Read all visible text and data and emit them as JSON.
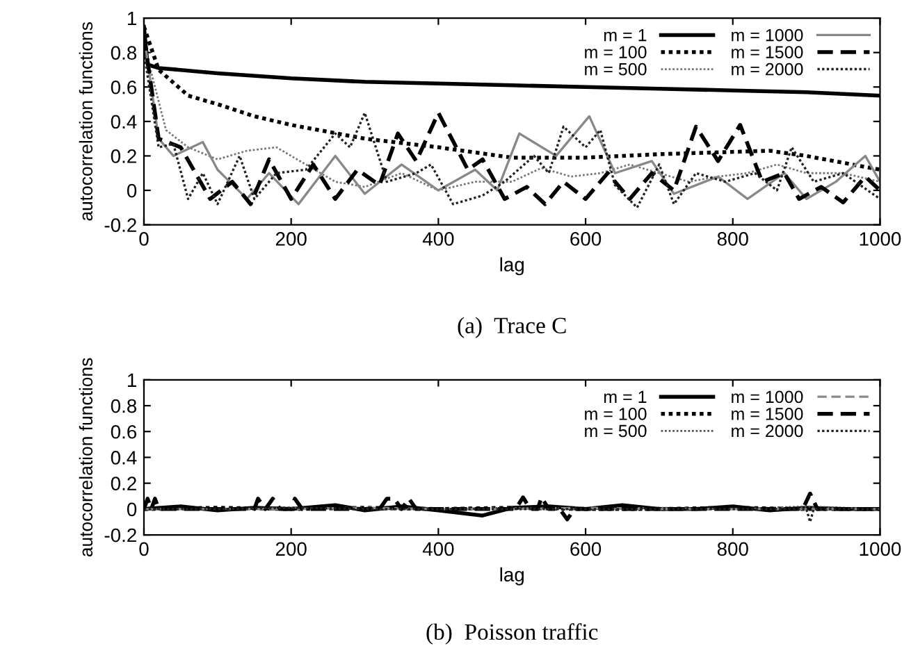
{
  "chart_data": [
    {
      "type": "line",
      "title": "(a)  Trace C",
      "xlabel": "lag",
      "ylabel": "autocorrelation functions",
      "xlim": [
        0,
        1000
      ],
      "ylim": [
        -0.2,
        1
      ],
      "xticks": [
        0,
        200,
        400,
        600,
        800,
        1000
      ],
      "yticks": [
        -0.2,
        0,
        0.2,
        0.4,
        0.6,
        0.8,
        1
      ],
      "grid": false,
      "legend": "top right",
      "series": [
        {
          "name": "m = 1",
          "color": "#000000",
          "line_style": "solid",
          "x": [
            0,
            5,
            20,
            100,
            200,
            300,
            400,
            500,
            600,
            700,
            800,
            900,
            1000
          ],
          "values": [
            0.95,
            0.73,
            0.71,
            0.68,
            0.65,
            0.63,
            0.62,
            0.61,
            0.6,
            0.59,
            0.58,
            0.57,
            0.55
          ]
        },
        {
          "name": "m = 100",
          "color": "#000000",
          "line_style": "dotted",
          "x": [
            0,
            20,
            60,
            100,
            150,
            200,
            300,
            400,
            500,
            600,
            700,
            850,
            900,
            1000
          ],
          "values": [
            0.95,
            0.7,
            0.55,
            0.5,
            0.43,
            0.38,
            0.3,
            0.25,
            0.19,
            0.19,
            0.21,
            0.23,
            0.2,
            0.12
          ]
        },
        {
          "name": "m = 500",
          "color": "#777777",
          "line_style": "dotted",
          "x": [
            0,
            30,
            60,
            100,
            140,
            180,
            220,
            260,
            300,
            350,
            400,
            450,
            500,
            540,
            580,
            620,
            660,
            700,
            740,
            780,
            820,
            860,
            900,
            950,
            1000
          ],
          "values": [
            0.85,
            0.35,
            0.25,
            0.18,
            0.23,
            0.25,
            0.15,
            0.05,
            0.02,
            0.1,
            0.0,
            0.05,
            0.05,
            0.13,
            0.08,
            0.1,
            0.15,
            0.1,
            0.05,
            0.08,
            0.1,
            0.15,
            0.1,
            0.1,
            0.05
          ]
        },
        {
          "name": "m = 1000",
          "color": "#888888",
          "line_style": "solid",
          "x": [
            0,
            20,
            40,
            80,
            100,
            140,
            170,
            210,
            260,
            300,
            350,
            400,
            450,
            480,
            510,
            560,
            605,
            640,
            690,
            720,
            780,
            820,
            870,
            900,
            940,
            980,
            1000
          ],
          "values": [
            0.9,
            0.3,
            0.2,
            0.28,
            0.12,
            -0.05,
            0.1,
            -0.08,
            0.2,
            -0.02,
            0.15,
            0.0,
            0.12,
            0.0,
            0.33,
            0.2,
            0.43,
            0.1,
            0.17,
            -0.02,
            0.08,
            -0.05,
            0.1,
            -0.05,
            0.05,
            0.2,
            0.05
          ]
        },
        {
          "name": "m = 1500",
          "color": "#000000",
          "line_style": "dashed",
          "x": [
            0,
            20,
            50,
            70,
            90,
            120,
            145,
            170,
            200,
            230,
            260,
            290,
            320,
            345,
            370,
            400,
            440,
            460,
            490,
            520,
            545,
            570,
            600,
            630,
            660,
            690,
            720,
            750,
            780,
            810,
            840,
            870,
            890,
            920,
            950,
            980,
            1000
          ],
          "values": [
            0.9,
            0.3,
            0.25,
            0.1,
            -0.05,
            0.05,
            -0.08,
            0.18,
            -0.05,
            0.15,
            -0.05,
            0.12,
            0.03,
            0.33,
            0.17,
            0.45,
            0.12,
            0.18,
            -0.05,
            0.02,
            -0.08,
            0.05,
            -0.05,
            0.1,
            -0.05,
            0.1,
            0.0,
            0.37,
            0.17,
            0.38,
            0.05,
            0.1,
            -0.05,
            0.02,
            -0.07,
            0.08,
            0.0
          ]
        },
        {
          "name": "m = 2000",
          "color": "#222222",
          "line_style": "dotted",
          "x": [
            0,
            20,
            40,
            60,
            80,
            100,
            130,
            150,
            180,
            220,
            260,
            280,
            300,
            330,
            370,
            390,
            420,
            460,
            490,
            530,
            550,
            570,
            600,
            620,
            640,
            670,
            700,
            720,
            750,
            790,
            830,
            860,
            880,
            910,
            950,
            1000
          ],
          "values": [
            0.8,
            0.25,
            0.27,
            -0.05,
            0.1,
            -0.08,
            0.2,
            -0.05,
            0.1,
            0.12,
            0.33,
            0.25,
            0.45,
            0.05,
            0.1,
            0.15,
            -0.08,
            -0.03,
            0.05,
            0.2,
            0.1,
            0.37,
            0.25,
            0.35,
            0.03,
            -0.1,
            0.15,
            -0.08,
            0.1,
            0.05,
            0.1,
            0.0,
            0.25,
            0.05,
            0.1,
            -0.05
          ]
        }
      ]
    },
    {
      "type": "line",
      "title": "(b)  Poisson traffic",
      "xlabel": "lag",
      "ylabel": "autocorrelation functions",
      "xlim": [
        0,
        1000
      ],
      "ylim": [
        -0.2,
        1
      ],
      "xticks": [
        0,
        200,
        400,
        600,
        800,
        1000
      ],
      "yticks": [
        -0.2,
        0,
        0.2,
        0.4,
        0.6,
        0.8,
        1
      ],
      "grid": false,
      "legend": "top right",
      "series": [
        {
          "name": "m = 1",
          "color": "#000000",
          "line_style": "solid",
          "x": [
            0,
            50,
            100,
            150,
            200,
            260,
            300,
            350,
            400,
            460,
            500,
            550,
            600,
            650,
            700,
            750,
            800,
            850,
            900,
            950,
            1000
          ],
          "values": [
            0.0,
            0.02,
            -0.01,
            0.01,
            0.0,
            0.03,
            -0.01,
            0.02,
            -0.01,
            -0.05,
            0.01,
            0.02,
            0.0,
            0.03,
            0.0,
            0.0,
            0.02,
            -0.01,
            0.01,
            0.0,
            0.0
          ]
        },
        {
          "name": "m = 100",
          "color": "#000000",
          "line_style": "dotted",
          "x": [
            0,
            100,
            200,
            300,
            400,
            500,
            600,
            700,
            800,
            900,
            1000
          ],
          "values": [
            0.0,
            0.01,
            0.0,
            0.01,
            0.0,
            0.01,
            0.0,
            0.0,
            0.01,
            0.0,
            0.0
          ]
        },
        {
          "name": "m = 500",
          "color": "#555555",
          "line_style": "dotted",
          "x": [
            0,
            100,
            200,
            300,
            400,
            500,
            600,
            700,
            800,
            900,
            1000
          ],
          "values": [
            0.0,
            0.0,
            0.01,
            0.0,
            0.0,
            0.01,
            0.0,
            0.01,
            0.0,
            0.02,
            0.0
          ]
        },
        {
          "name": "m = 1000",
          "color": "#888888",
          "line_style": "dashed",
          "x": [
            0,
            100,
            200,
            300,
            400,
            500,
            600,
            700,
            800,
            900,
            1000
          ],
          "values": [
            0.0,
            0.0,
            0.0,
            0.01,
            0.0,
            0.0,
            0.01,
            0.0,
            0.0,
            0.0,
            0.0
          ]
        },
        {
          "name": "m = 1500",
          "color": "#000000",
          "line_style": "dashed",
          "x": [
            0,
            5,
            10,
            15,
            20,
            150,
            155,
            165,
            175,
            185,
            200,
            205,
            215,
            320,
            330,
            340,
            350,
            360,
            370,
            505,
            515,
            525,
            535,
            540,
            550,
            565,
            575,
            585,
            895,
            905,
            915,
            1000
          ],
          "values": [
            0.0,
            0.08,
            0.0,
            0.08,
            0.0,
            0.0,
            0.08,
            0.0,
            0.08,
            0.0,
            0.0,
            0.08,
            0.0,
            0.0,
            0.08,
            0.08,
            0.0,
            0.08,
            0.0,
            0.0,
            0.09,
            0.0,
            0.0,
            0.09,
            0.0,
            0.0,
            -0.08,
            0.0,
            0.0,
            0.12,
            0.0,
            0.0
          ]
        },
        {
          "name": "m = 2000",
          "color": "#222222",
          "line_style": "dotted",
          "x": [
            0,
            100,
            200,
            300,
            400,
            500,
            600,
            700,
            800,
            900,
            905,
            910,
            1000
          ],
          "values": [
            0.0,
            0.0,
            0.01,
            0.0,
            0.0,
            0.0,
            0.0,
            0.0,
            0.0,
            0.0,
            -0.1,
            0.0,
            0.0
          ]
        }
      ]
    }
  ]
}
